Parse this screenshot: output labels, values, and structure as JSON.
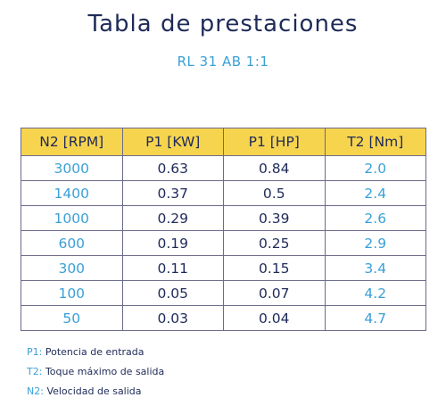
{
  "title": "Tabla de prestaciones",
  "subtitle": "RL 31 AB 1:1",
  "table": {
    "headers": [
      "N2 [RPM]",
      "P1 [KW]",
      "P1 [HP]",
      "T2 [Nm]"
    ],
    "rows": [
      [
        "3000",
        "0.63",
        "0.84",
        "2.0"
      ],
      [
        "1400",
        "0.37",
        "0.5",
        "2.4"
      ],
      [
        "1000",
        "0.29",
        "0.39",
        "2.6"
      ],
      [
        "600",
        "0.19",
        "0.25",
        "2.9"
      ],
      [
        "300",
        "0.11",
        "0.15",
        "3.4"
      ],
      [
        "100",
        "0.05",
        "0.07",
        "4.2"
      ],
      [
        "50",
        "0.03",
        "0.04",
        "4.7"
      ]
    ]
  },
  "notes": [
    {
      "key": "P1:",
      "text": "Potencia de entrada"
    },
    {
      "key": "T2:",
      "text": "Toque máximo de salida"
    },
    {
      "key": "N2:",
      "text": "Velocidad de salida"
    }
  ],
  "colors": {
    "title": "#1e2a58",
    "accent_blue": "#3aa0d6",
    "header_yellow": "#f7d44e"
  }
}
